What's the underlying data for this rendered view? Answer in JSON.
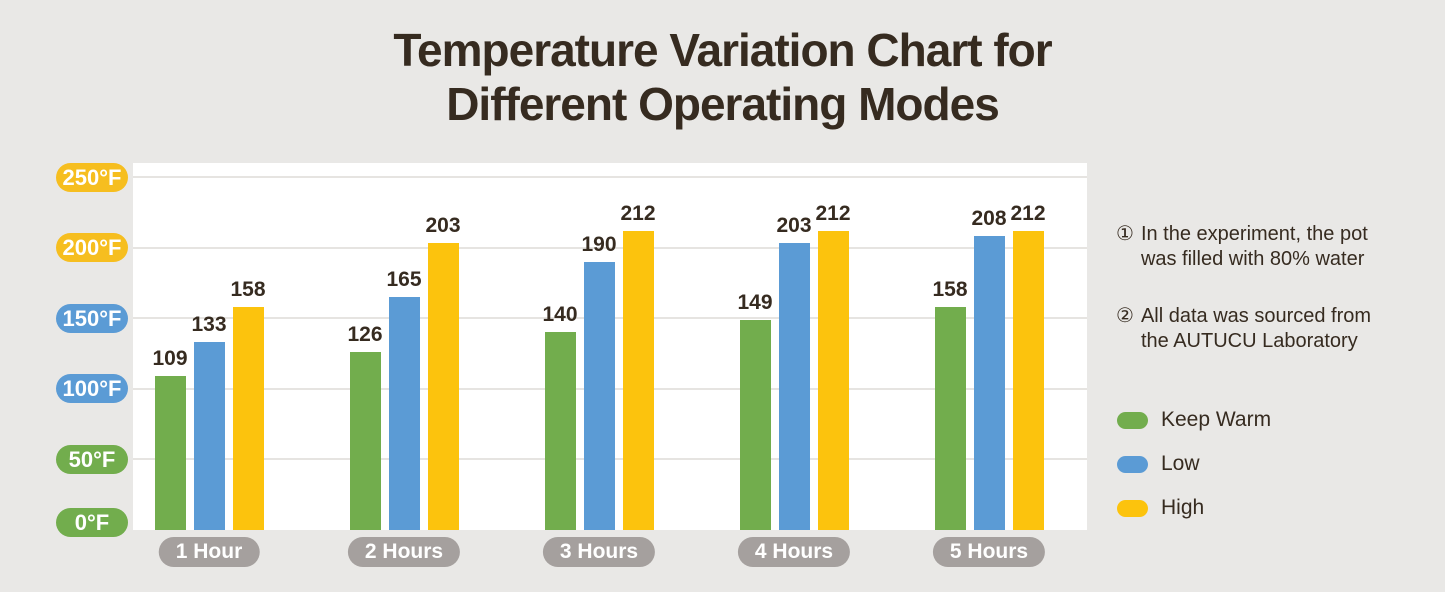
{
  "title": "Temperature Variation Chart for\nDifferent Operating Modes",
  "notes": [
    {
      "num": "①",
      "text": "In the experiment, the pot\nwas filled with 80% water"
    },
    {
      "num": "②",
      "text": "All data was sourced from\nthe AUTUCU Laboratory"
    }
  ],
  "chart_data": {
    "type": "bar",
    "title": "Temperature Variation Chart for Different Operating Modes",
    "categories": [
      "1 Hour",
      "2 Hours",
      "3 Hours",
      "4 Hours",
      "5 Hours"
    ],
    "series": [
      {
        "name": "Keep Warm",
        "color": "#72ad4d",
        "values": [
          109,
          126,
          140,
          149,
          158
        ]
      },
      {
        "name": "Low",
        "color": "#5b9bd5",
        "values": [
          133,
          165,
          190,
          203,
          208
        ]
      },
      {
        "name": "High",
        "color": "#fcc30d",
        "values": [
          158,
          203,
          212,
          212,
          212
        ]
      }
    ],
    "y_ticks": [
      {
        "label": "250°F",
        "value": 250,
        "color": "#f6be1f"
      },
      {
        "label": "200°F",
        "value": 200,
        "color": "#f6be1f"
      },
      {
        "label": "150°F",
        "value": 150,
        "color": "#5b9bd5"
      },
      {
        "label": "100°F",
        "value": 100,
        "color": "#5b9bd5"
      },
      {
        "label": "50°F",
        "value": 50,
        "color": "#72ad4d"
      },
      {
        "label": "0°F",
        "value": 0,
        "color": "#72ad4d"
      }
    ],
    "ylim": [
      0,
      260
    ],
    "unit": "°F",
    "grid": true,
    "legend_position": "right",
    "xlabel": "",
    "ylabel": ""
  },
  "colors": {
    "background": "#e9e8e6",
    "plot_background": "#ffffff",
    "gridline": "#e6e4e1",
    "text": "#362b20",
    "category_pill": "#a5a09e"
  }
}
